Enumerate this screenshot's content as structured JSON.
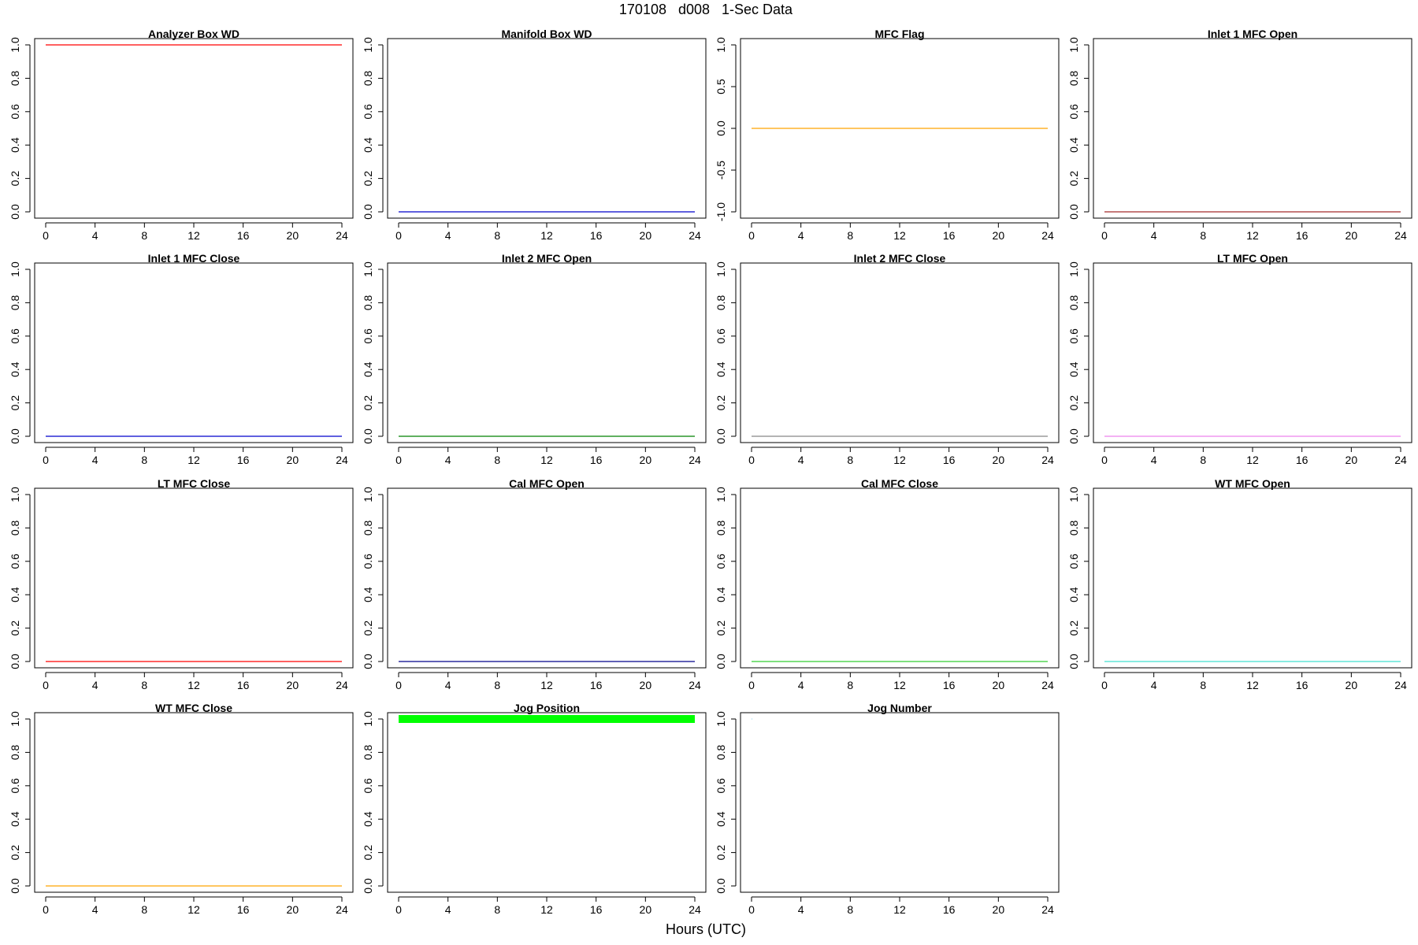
{
  "header": {
    "title": "170108   d008   1-Sec Data"
  },
  "footer": {
    "xlabel": "Hours (UTC)"
  },
  "chart_data": [
    {
      "type": "line",
      "title": "Analyzer Box WD",
      "color": "#ff0000",
      "xlim": [
        0,
        24
      ],
      "ylim": [
        0,
        1
      ],
      "xticks": [
        "0",
        "4",
        "8",
        "12",
        "16",
        "20",
        "24"
      ],
      "yticks": [
        "0.0",
        "0.2",
        "0.4",
        "0.6",
        "0.8",
        "1.0"
      ],
      "series": [
        {
          "x": [
            0,
            24
          ],
          "y": [
            1,
            1
          ]
        }
      ]
    },
    {
      "type": "line",
      "title": "Manifold Box WD",
      "color": "#0000cc",
      "xlim": [
        0,
        24
      ],
      "ylim": [
        0,
        1
      ],
      "xticks": [
        "0",
        "4",
        "8",
        "12",
        "16",
        "20",
        "24"
      ],
      "yticks": [
        "0.0",
        "0.2",
        "0.4",
        "0.6",
        "0.8",
        "1.0"
      ],
      "series": [
        {
          "x": [
            0,
            24
          ],
          "y": [
            0,
            0
          ]
        }
      ]
    },
    {
      "type": "line",
      "title": "MFC Flag",
      "color": "#ffa500",
      "xlim": [
        0,
        24
      ],
      "ylim": [
        -1,
        1
      ],
      "xticks": [
        "0",
        "4",
        "8",
        "12",
        "16",
        "20",
        "24"
      ],
      "yticks": [
        "-1.0",
        "-0.5",
        "0.0",
        "0.5",
        "1.0"
      ],
      "series": [
        {
          "x": [
            0,
            24
          ],
          "y": [
            0,
            0
          ]
        }
      ]
    },
    {
      "type": "line",
      "title": "Inlet 1 MFC Open",
      "color": "#a52a2a",
      "xlim": [
        0,
        24
      ],
      "ylim": [
        0,
        1
      ],
      "xticks": [
        "0",
        "4",
        "8",
        "12",
        "16",
        "20",
        "24"
      ],
      "yticks": [
        "0.0",
        "0.2",
        "0.4",
        "0.6",
        "0.8",
        "1.0"
      ],
      "series": [
        {
          "x": [
            0,
            24
          ],
          "y": [
            0,
            0
          ]
        }
      ]
    },
    {
      "type": "line",
      "title": "Inlet 1 MFC Close",
      "color": "#0000cc",
      "xlim": [
        0,
        24
      ],
      "ylim": [
        0,
        1
      ],
      "xticks": [
        "0",
        "4",
        "8",
        "12",
        "16",
        "20",
        "24"
      ],
      "yticks": [
        "0.0",
        "0.2",
        "0.4",
        "0.6",
        "0.8",
        "1.0"
      ],
      "series": [
        {
          "x": [
            0,
            24
          ],
          "y": [
            0,
            0
          ]
        }
      ]
    },
    {
      "type": "line",
      "title": "Inlet 2 MFC Open",
      "color": "#008000",
      "xlim": [
        0,
        24
      ],
      "ylim": [
        0,
        1
      ],
      "xticks": [
        "0",
        "4",
        "8",
        "12",
        "16",
        "20",
        "24"
      ],
      "yticks": [
        "0.0",
        "0.2",
        "0.4",
        "0.6",
        "0.8",
        "1.0"
      ],
      "series": [
        {
          "x": [
            0,
            24
          ],
          "y": [
            0,
            0
          ]
        }
      ]
    },
    {
      "type": "line",
      "title": "Inlet 2 MFC Close",
      "color": "#888888",
      "xlim": [
        0,
        24
      ],
      "ylim": [
        0,
        1
      ],
      "xticks": [
        "0",
        "4",
        "8",
        "12",
        "16",
        "20",
        "24"
      ],
      "yticks": [
        "0.0",
        "0.2",
        "0.4",
        "0.6",
        "0.8",
        "1.0"
      ],
      "series": [
        {
          "x": [
            0,
            24
          ],
          "y": [
            0,
            0
          ]
        }
      ]
    },
    {
      "type": "line",
      "title": "LT MFC Open",
      "color": "#ee82ee",
      "xlim": [
        0,
        24
      ],
      "ylim": [
        0,
        1
      ],
      "xticks": [
        "0",
        "4",
        "8",
        "12",
        "16",
        "20",
        "24"
      ],
      "yticks": [
        "0.0",
        "0.2",
        "0.4",
        "0.6",
        "0.8",
        "1.0"
      ],
      "series": [
        {
          "x": [
            0,
            24
          ],
          "y": [
            0,
            0
          ]
        }
      ]
    },
    {
      "type": "line",
      "title": "LT MFC Close",
      "color": "#ff0000",
      "xlim": [
        0,
        24
      ],
      "ylim": [
        0,
        1
      ],
      "xticks": [
        "0",
        "4",
        "8",
        "12",
        "16",
        "20",
        "24"
      ],
      "yticks": [
        "0.0",
        "0.2",
        "0.4",
        "0.6",
        "0.8",
        "1.0"
      ],
      "series": [
        {
          "x": [
            0,
            24
          ],
          "y": [
            0,
            0
          ]
        }
      ]
    },
    {
      "type": "line",
      "title": "Cal MFC Open",
      "color": "#00008b",
      "xlim": [
        0,
        24
      ],
      "ylim": [
        0,
        1
      ],
      "xticks": [
        "0",
        "4",
        "8",
        "12",
        "16",
        "20",
        "24"
      ],
      "yticks": [
        "0.0",
        "0.2",
        "0.4",
        "0.6",
        "0.8",
        "1.0"
      ],
      "series": [
        {
          "x": [
            0,
            24
          ],
          "y": [
            0,
            0
          ]
        }
      ]
    },
    {
      "type": "line",
      "title": "Cal MFC Close",
      "color": "#32cd32",
      "xlim": [
        0,
        24
      ],
      "ylim": [
        0,
        1
      ],
      "xticks": [
        "0",
        "4",
        "8",
        "12",
        "16",
        "20",
        "24"
      ],
      "yticks": [
        "0.0",
        "0.2",
        "0.4",
        "0.6",
        "0.8",
        "1.0"
      ],
      "series": [
        {
          "x": [
            0,
            24
          ],
          "y": [
            0,
            0
          ]
        }
      ]
    },
    {
      "type": "line",
      "title": "WT MFC Open",
      "color": "#40e0d0",
      "xlim": [
        0,
        24
      ],
      "ylim": [
        0,
        1
      ],
      "xticks": [
        "0",
        "4",
        "8",
        "12",
        "16",
        "20",
        "24"
      ],
      "yticks": [
        "0.0",
        "0.2",
        "0.4",
        "0.6",
        "0.8",
        "1.0"
      ],
      "series": [
        {
          "x": [
            0,
            24
          ],
          "y": [
            0,
            0
          ]
        }
      ]
    },
    {
      "type": "line",
      "title": "WT MFC Close",
      "color": "#ffa500",
      "xlim": [
        0,
        24
      ],
      "ylim": [
        0,
        1
      ],
      "xticks": [
        "0",
        "4",
        "8",
        "12",
        "16",
        "20",
        "24"
      ],
      "yticks": [
        "0.0",
        "0.2",
        "0.4",
        "0.6",
        "0.8",
        "1.0"
      ],
      "series": [
        {
          "x": [
            0,
            24
          ],
          "y": [
            0,
            0
          ]
        }
      ]
    },
    {
      "type": "line",
      "title": "Jog Position",
      "color": "#00ff00",
      "xlim": [
        0,
        24
      ],
      "ylim": [
        0,
        1
      ],
      "xticks": [
        "0",
        "4",
        "8",
        "12",
        "16",
        "20",
        "24"
      ],
      "yticks": [
        "0.0",
        "0.2",
        "0.4",
        "0.6",
        "0.8",
        "1.0"
      ],
      "series": [
        {
          "x": [
            0,
            24
          ],
          "y": [
            1,
            1
          ],
          "thick": true
        }
      ]
    },
    {
      "type": "line",
      "title": "Jog Number",
      "color": "#87ceeb",
      "xlim": [
        0,
        24
      ],
      "ylim": [
        0,
        1
      ],
      "xticks": [
        "0",
        "4",
        "8",
        "12",
        "16",
        "20",
        "24"
      ],
      "yticks": [
        "0.0",
        "0.2",
        "0.4",
        "0.6",
        "0.8",
        "1.0"
      ],
      "series": [
        {
          "x": [
            0,
            0.05
          ],
          "y": [
            1,
            1
          ]
        }
      ]
    }
  ]
}
